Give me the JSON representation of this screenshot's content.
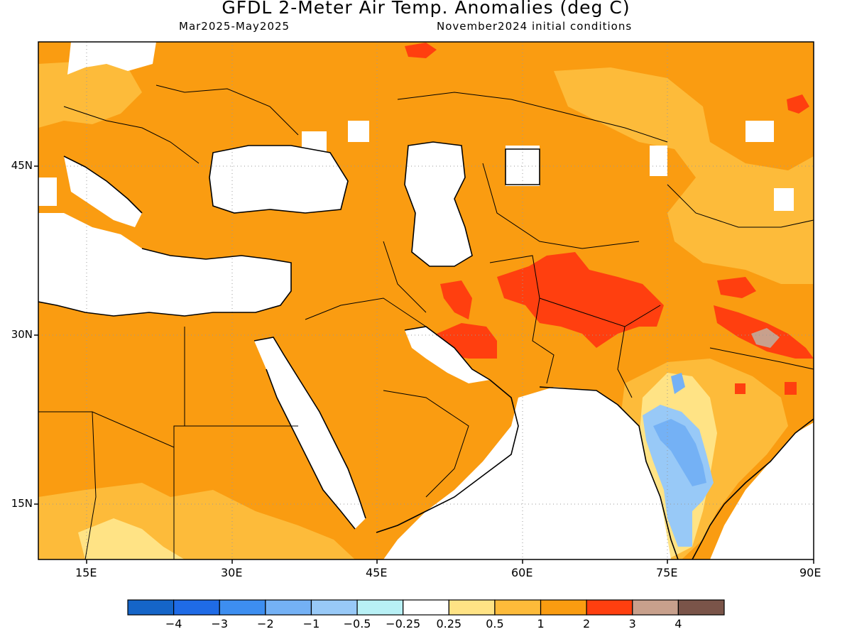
{
  "header": {
    "title": "GFDL 2-Meter Air Temp. Anomalies (deg C)",
    "period": "Mar2025-May2025",
    "init": "November2024 initial conditions"
  },
  "axes": {
    "lat_labels": [
      "45N",
      "30N",
      "15N"
    ],
    "lon_labels": [
      "15E",
      "30E",
      "45E",
      "60E",
      "75E",
      "90E"
    ]
  },
  "colorbar": {
    "labels": [
      "-4",
      "-3",
      "-2",
      "-1",
      "-0.5",
      "-0.25",
      "0.25",
      "0.5",
      "1",
      "2",
      "3",
      "4"
    ],
    "colors": [
      "#1565c8",
      "#1f6be6",
      "#3d8ef0",
      "#74b1f5",
      "#98c9f7",
      "#b8f0f5",
      "#ffffff",
      "#ffe385",
      "#fdbb3a",
      "#fa9c11",
      "#ff3f0f",
      "#c8a08c",
      "#7a5449"
    ]
  },
  "chart_data": {
    "type": "heatmap",
    "title": "GFDL 2-Meter Air Temp. Anomalies (deg C)",
    "subtitle": "Mar2025-May2025 / November2024 initial conditions",
    "x_range_deg_e": [
      10,
      90
    ],
    "y_range_deg_n": [
      9,
      56
    ],
    "grid": true,
    "contour_levels": [
      -4,
      -3,
      -2,
      -1,
      -0.5,
      -0.25,
      0.25,
      0.5,
      1,
      2,
      3,
      4
    ],
    "dominant_anomaly_range": "1 to 2",
    "regions": [
      {
        "area": "Pakistan / Afghanistan / southern Iran",
        "anomaly_range": "2 to 3"
      },
      {
        "area": "Himalaya / Tibet",
        "anomaly_range": "3 to 4"
      },
      {
        "area": "Central India / western Deccan",
        "anomaly_range": "-2 to -0.25"
      },
      {
        "area": "Kazakhstan / western China",
        "anomaly_range": "0.5 to 1"
      },
      {
        "area": "Sea surfaces (Mediterranean, Black, Caspian, Red, Arabian Sea)",
        "anomaly_range": "-0.25 to 0.25"
      }
    ]
  }
}
